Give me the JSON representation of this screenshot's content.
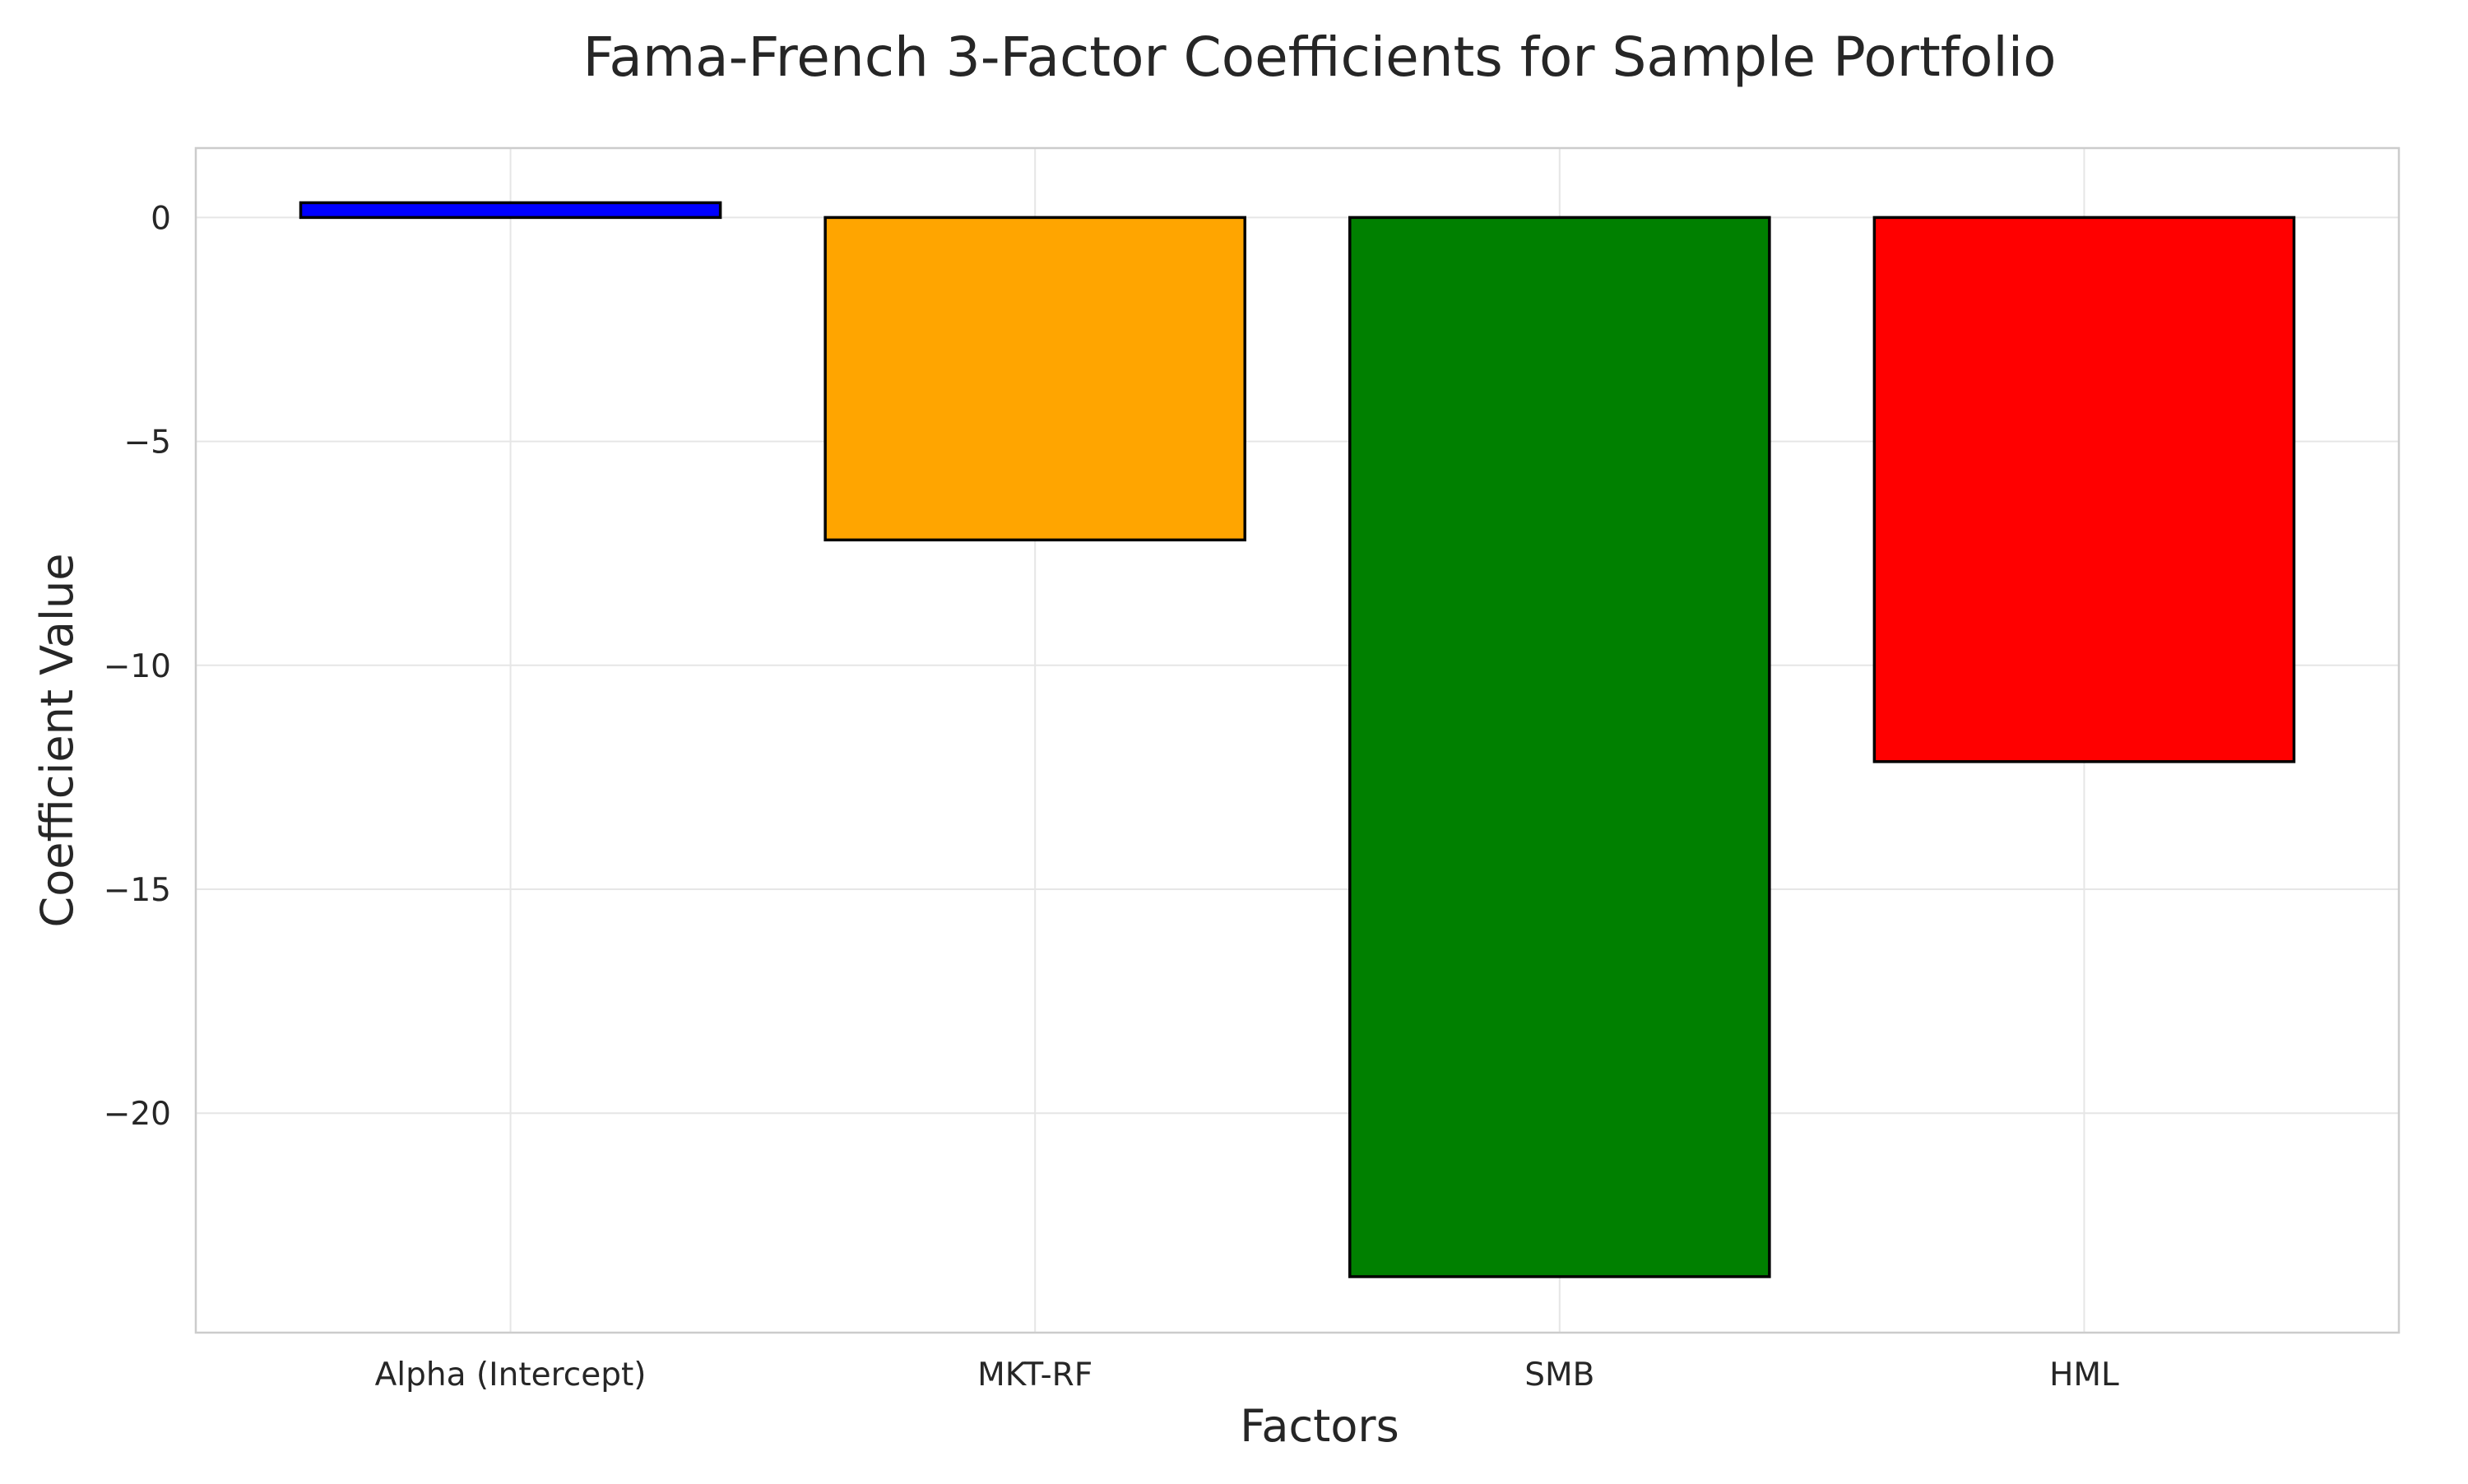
{
  "chart_data": {
    "type": "bar",
    "title": "Fama-French 3-Factor Coefficients for Sample Portfolio",
    "xlabel": "Factors",
    "ylabel": "Coefficient Value",
    "categories": [
      "Alpha (Intercept)",
      "MKT-RF",
      "SMB",
      "HML"
    ],
    "values": [
      0.33,
      -7.2,
      -23.65,
      -12.15
    ],
    "colors": [
      "#0000ff",
      "#ffa500",
      "#008000",
      "#ff0000"
    ],
    "edge_color": "#000000",
    "ylim": [
      -24.9,
      1.55
    ],
    "yticks": [
      0,
      -5,
      -10,
      -15,
      -20
    ],
    "ytick_labels": [
      "0",
      "−5",
      "−10",
      "−15",
      "−20"
    ],
    "grid": true,
    "legend": "none"
  }
}
